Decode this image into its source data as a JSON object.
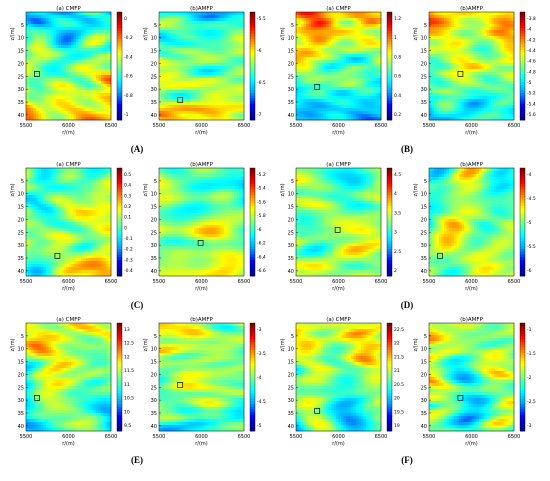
{
  "figure": {
    "panels": [
      {
        "label": "(A)",
        "cmfp_title": "(a) CMFP",
        "amfp_title": "(b)AMFP",
        "cmfp_ticks": [
          "0",
          "-0.2",
          "-0.4",
          "-0.6",
          "-0.8",
          "-1"
        ],
        "amfp_ticks": [
          "-5.5",
          "-6",
          "-6.5",
          "-7"
        ]
      },
      {
        "label": "(B)",
        "cmfp_title": "(a) CMFP",
        "amfp_title": "(b)AMFP",
        "cmfp_ticks": [
          "1.2",
          "1",
          "0.8",
          "0.6",
          "0.4",
          "0.2"
        ],
        "amfp_ticks": [
          "-3.8",
          "-4",
          "-4.2",
          "-4.4",
          "-4.6",
          "-4.8",
          "-5",
          "-5.2",
          "-5.4",
          "-5.6"
        ]
      },
      {
        "label": "(C)",
        "cmfp_title": "(a) CMFP",
        "amfp_title": "(b)AMFP",
        "cmfp_ticks": [
          "0.5",
          "0.4",
          "0.3",
          "0.2",
          "0.1",
          "0",
          "-0.1",
          "-0.2",
          "-0.3",
          "-0.4"
        ],
        "amfp_ticks": [
          "-5.2",
          "-5.4",
          "-5.6",
          "-5.8",
          "-6",
          "-6.2",
          "-6.4",
          "-6.6"
        ]
      },
      {
        "label": "(D)",
        "cmfp_title": "(a) CMFP",
        "amfp_title": "(b)AMFP",
        "cmfp_ticks": [
          "4.5",
          "4",
          "3.5",
          "3",
          "2.5",
          "2"
        ],
        "amfp_ticks": [
          "-4",
          "-4.5",
          "-5",
          "-5.5",
          "-6"
        ]
      },
      {
        "label": "(E)",
        "cmfp_title": "(a) CMFP",
        "amfp_title": "(b)AMFP",
        "cmfp_ticks": [
          "13",
          "12.5",
          "12",
          "11.5",
          "11",
          "10.5",
          "10",
          "9.5"
        ],
        "amfp_ticks": [
          "-3",
          "-3.5",
          "-4",
          "-4.5",
          "-5"
        ]
      },
      {
        "label": "(F)",
        "cmfp_title": "(a) CMFP",
        "amfp_title": "(b)AMFP",
        "cmfp_ticks": [
          "22.5",
          "22",
          "21.5",
          "21",
          "20.5",
          "20",
          "19.5",
          "19"
        ],
        "amfp_ticks": [
          "-1",
          "-1.5",
          "-2",
          "-2.5",
          "-3"
        ]
      }
    ],
    "x_ticks": [
      "5500",
      "6000",
      "6500"
    ],
    "y_ticks": [
      "5",
      "10",
      "15",
      "20",
      "25",
      "30",
      "35",
      "40"
    ],
    "x_axis_label": "r/(m)",
    "y_axis_label": "z/(m)",
    "colormap": [
      "#00008f",
      "#0000ff",
      "#00a0ff",
      "#00ffff",
      "#80ff80",
      "#ffff00",
      "#ff8000",
      "#ff0000",
      "#800000"
    ]
  },
  "chart_data": {
    "type": "heatmap",
    "x_range": [
      5500,
      6500
    ],
    "y_range": [
      0,
      42
    ],
    "y_reversed": true,
    "panels": [
      {
        "label": "(A)",
        "cmfp_range": [
          -1.1,
          0.05
        ],
        "amfp_range": [
          -7.3,
          -5.3
        ]
      },
      {
        "label": "(B)",
        "cmfp_range": [
          0.1,
          1.3
        ],
        "amfp_range": [
          -5.7,
          -3.7
        ]
      },
      {
        "label": "(C)",
        "cmfp_range": [
          -0.45,
          0.55
        ],
        "amfp_range": [
          -6.65,
          -5.15
        ]
      },
      {
        "label": "(D)",
        "cmfp_range": [
          1.9,
          4.7
        ],
        "amfp_range": [
          -6.2,
          -3.8
        ]
      },
      {
        "label": "(E)",
        "cmfp_range": [
          9.3,
          13.2
        ],
        "amfp_range": [
          -5.2,
          -2.8
        ]
      },
      {
        "label": "(F)",
        "cmfp_range": [
          18.8,
          22.8
        ],
        "amfp_range": [
          -3.2,
          -0.8
        ]
      }
    ]
  }
}
